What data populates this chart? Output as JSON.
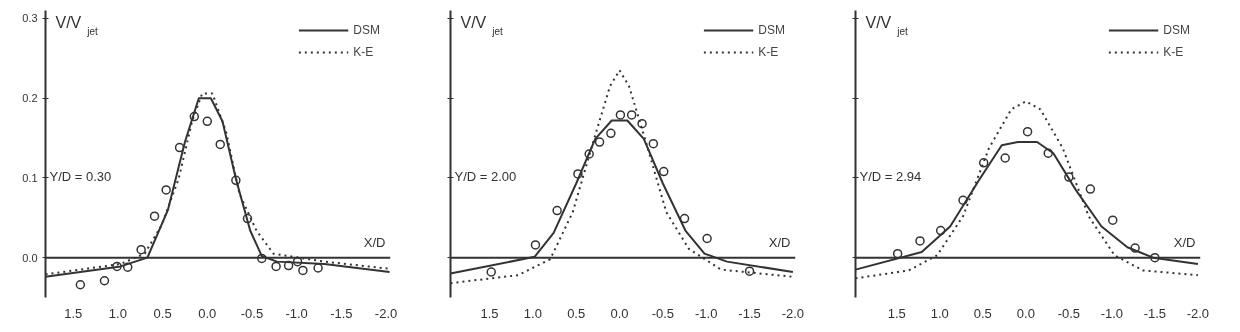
{
  "chart_data": [
    {
      "type": "line",
      "ylabel": "V/V$_{jet}$",
      "xlabel": "X/D",
      "annotations": [
        "Y/D = 0.30"
      ],
      "legend": "top right",
      "grid": false,
      "xlim": [
        1.81,
        -2.05
      ],
      "ylim": [
        -0.05,
        0.31
      ],
      "xticks": [
        1.5,
        {
          "value": 1,
          "label": "1.0"
        },
        0.5,
        {
          "value": 0,
          "label": "0.0"
        },
        -0.5,
        {
          "value": -1,
          "label": "-1.0"
        },
        -1.5,
        {
          "value": -2,
          "label": "-2.0"
        }
      ],
      "yticks": [
        {
          "value": 0,
          "label": "0.0"
        },
        0.1,
        0.2,
        0.3
      ],
      "ref_lines": [
        {
          "axis": "y",
          "value": 0,
          "label": null
        }
      ],
      "series": [
        {
          "name": "DSM",
          "color": "#333333",
          "line_style": "solid",
          "x": [
            1.81,
            0.97,
            0.67,
            0.44,
            0.25,
            0.095,
            -0.04,
            -0.17,
            -0.32,
            -0.48,
            -0.61,
            -0.78,
            -1.31,
            -2.04
          ],
          "values": [
            -0.024,
            -0.011,
            0.0,
            0.06,
            0.145,
            0.2,
            0.2,
            0.171,
            0.099,
            0.034,
            0.002,
            -0.005,
            -0.008,
            -0.018
          ]
        },
        {
          "name": "K-E",
          "color": "#333333",
          "line_style": "dotted",
          "x": [
            1.81,
            0.97,
            0.7,
            0.51,
            0.32,
            0.17,
            0.057,
            -0.057,
            -0.21,
            -0.36,
            -0.55,
            -0.74,
            -1.31,
            -2.04
          ],
          "values": [
            -0.021,
            -0.008,
            0.005,
            0.041,
            0.099,
            0.171,
            0.206,
            0.206,
            0.158,
            0.08,
            0.034,
            0.005,
            -0.005,
            -0.014
          ]
        },
        {
          "type": "scatter",
          "marker": "circle",
          "color": "#333333",
          "x": [
            1.42,
            1.15,
            1.01,
            0.89,
            0.74,
            0.59,
            0.46,
            0.31,
            0.145,
            0.0,
            -0.145,
            -0.32,
            -0.45,
            -0.61,
            -0.77,
            -0.91,
            -1.01,
            -1.07,
            -1.24
          ],
          "values": [
            -0.034,
            -0.029,
            -0.011,
            -0.012,
            0.01,
            0.052,
            0.085,
            0.138,
            0.177,
            0.171,
            0.142,
            0.097,
            0.049,
            -0.001,
            -0.011,
            -0.01,
            -0.005,
            -0.016,
            -0.013
          ]
        }
      ]
    },
    {
      "type": "line",
      "ylabel": "V/V$_{jet}$",
      "xlabel": "X/D",
      "annotations": [
        "Y/D = 2.00"
      ],
      "legend": "top right",
      "grid": false,
      "tick_labels": "x",
      "xlim": [
        1.95,
        -2.03
      ],
      "ylim": [
        -0.05,
        0.31
      ],
      "xticks": [
        1.5,
        {
          "value": 1,
          "label": "1.0"
        },
        0.5,
        {
          "value": 0,
          "label": "0.0"
        },
        -0.5,
        {
          "value": -1,
          "label": "-1.0"
        },
        -1.5,
        {
          "value": -2,
          "label": "-2.0"
        }
      ],
      "yticks": [
        {
          "value": 0,
          "label": null
        },
        {
          "value": 0.1,
          "label": null
        },
        {
          "value": 0.2,
          "label": null
        },
        {
          "value": 0.3,
          "label": null
        }
      ],
      "ref_lines": [
        {
          "axis": "y",
          "value": 0,
          "label": null
        }
      ],
      "series": [
        {
          "name": "DSM",
          "color": "#333333",
          "line_style": "solid",
          "x": [
            1.95,
            0.98,
            0.76,
            0.5,
            0.28,
            0.09,
            -0.09,
            -0.28,
            -0.5,
            -0.76,
            -0.98,
            -1.24,
            -2.0
          ],
          "values": [
            -0.02,
            0.001,
            0.031,
            0.093,
            0.149,
            0.172,
            0.172,
            0.149,
            0.093,
            0.034,
            0.005,
            -0.005,
            -0.018
          ]
        },
        {
          "name": "K-E",
          "color": "#333333",
          "line_style": "dotted",
          "x": [
            1.95,
            1.17,
            0.8,
            0.54,
            0.31,
            0.11,
            0.0,
            -0.11,
            -0.31,
            -0.54,
            -0.8,
            -1.17,
            -2.0
          ],
          "values": [
            -0.032,
            -0.022,
            -0.002,
            0.057,
            0.143,
            0.215,
            0.235,
            0.215,
            0.143,
            0.057,
            0.011,
            -0.015,
            -0.024
          ]
        },
        {
          "type": "scatter",
          "marker": "circle",
          "color": "#333333",
          "x": [
            1.48,
            0.97,
            0.72,
            0.48,
            0.35,
            0.23,
            0.1,
            -0.01,
            -0.14,
            -0.26,
            -0.39,
            -0.51,
            -0.75,
            -1.01,
            -1.5
          ],
          "values": [
            -0.018,
            0.016,
            0.059,
            0.105,
            0.13,
            0.145,
            0.156,
            0.179,
            0.179,
            0.168,
            0.143,
            0.108,
            0.049,
            0.024,
            -0.017
          ]
        }
      ]
    },
    {
      "type": "line",
      "ylabel": "V/V$_{jet}$",
      "xlabel": "X/D",
      "annotations": [
        "Y/D = 2.94"
      ],
      "legend": "top right",
      "grid": false,
      "tick_labels": "x",
      "xlim": [
        1.98,
        -2.03
      ],
      "ylim": [
        -0.05,
        0.31
      ],
      "xticks": [
        1.5,
        {
          "value": 1,
          "label": "1.0"
        },
        0.5,
        {
          "value": 0,
          "label": "0.0"
        },
        -0.5,
        {
          "value": -1,
          "label": "-1.0"
        },
        -1.5,
        {
          "value": -2,
          "label": "-2.0"
        }
      ],
      "yticks": [
        {
          "value": 0,
          "label": null
        },
        {
          "value": 0.1,
          "label": null
        },
        {
          "value": 0.2,
          "label": null
        },
        {
          "value": 0.3,
          "label": null
        }
      ],
      "ref_lines": [
        {
          "axis": "y",
          "value": 0,
          "label": null
        }
      ],
      "series": [
        {
          "name": "DSM",
          "color": "#333333",
          "line_style": "solid",
          "x": [
            1.98,
            1.21,
            0.88,
            0.54,
            0.28,
            0.09,
            -0.13,
            -0.32,
            -0.58,
            -0.88,
            -1.18,
            -1.48,
            -2.0
          ],
          "values": [
            -0.015,
            0.007,
            0.039,
            0.098,
            0.141,
            0.145,
            0.145,
            0.131,
            0.085,
            0.039,
            0.013,
            0.0,
            -0.008
          ]
        },
        {
          "name": "K-E",
          "color": "#333333",
          "line_style": "dotted",
          "x": [
            1.98,
            1.36,
            1.03,
            0.73,
            0.43,
            0.17,
            0.0,
            -0.17,
            -0.43,
            -0.73,
            -1.03,
            -1.36,
            -2.0
          ],
          "values": [
            -0.026,
            -0.016,
            0.003,
            0.052,
            0.137,
            0.186,
            0.196,
            0.186,
            0.137,
            0.052,
            0.003,
            -0.016,
            -0.022
          ]
        },
        {
          "type": "scatter",
          "marker": "circle",
          "color": "#333333",
          "x": [
            1.49,
            1.23,
            0.99,
            0.73,
            0.49,
            0.24,
            -0.02,
            -0.26,
            -0.5,
            -0.75,
            -1.01,
            -1.27,
            -1.5
          ],
          "values": [
            0.005,
            0.021,
            0.034,
            0.072,
            0.119,
            0.125,
            0.158,
            0.131,
            0.101,
            0.086,
            0.047,
            0.012,
            0.0
          ]
        }
      ]
    }
  ]
}
